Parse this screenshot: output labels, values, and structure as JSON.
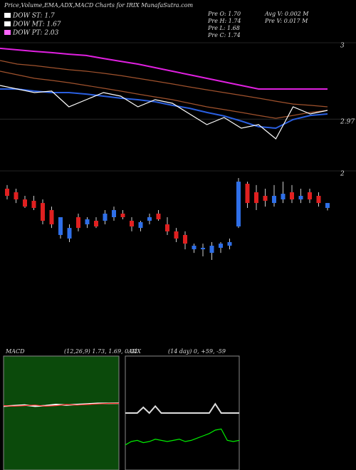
{
  "header": {
    "title": "Price,Volume,EMA,ADX,MACD Charts for IRIX MunafaSutra.com",
    "legend": [
      {
        "label": "DOW ST: 1.7",
        "color": "#ffffff"
      },
      {
        "label": "DOW MT: 1.67",
        "color": "#ffffff"
      },
      {
        "label": "DOW PT: 2.03",
        "color": "#ff66ff"
      }
    ],
    "info": [
      "Pre O: 1.70",
      "Pre H: 1.74",
      "Pre L: 1.68",
      "Pre C: 1.74",
      "Avg V: 0.002 M",
      "Pre V: 0.017 M"
    ]
  },
  "chart_data": [
    {
      "type": "line",
      "categories": [
        null,
        null,
        null,
        null,
        null,
        null,
        null,
        null,
        null,
        null,
        null,
        null,
        null,
        null,
        null,
        null,
        null,
        null,
        null,
        null
      ],
      "ylim": [
        2.951,
        3.0
      ],
      "yticks": [
        3,
        2.97
      ],
      "series": [
        {
          "color": "#e020e0",
          "values": [
            2.9978,
            2.9972,
            2.9966,
            2.9961,
            2.9955,
            2.995,
            2.9938,
            2.9927,
            2.9916,
            2.9902,
            2.9888,
            2.9874,
            2.986,
            2.9846,
            2.9832,
            2.9818,
            2.9818,
            2.9818,
            2.9818,
            2.9818
          ]
        },
        {
          "color": "#a0522d",
          "values": [
            2.993,
            2.9916,
            2.991,
            2.9902,
            2.9894,
            2.9888,
            2.988,
            2.9871,
            2.986,
            2.9849,
            2.9838,
            2.9826,
            2.9815,
            2.9804,
            2.9793,
            2.9782,
            2.977,
            2.9759,
            2.9754,
            2.9748
          ]
        },
        {
          "color": "#a0522d",
          "values": [
            2.9888,
            2.9874,
            2.986,
            2.9852,
            2.9843,
            2.9832,
            2.9821,
            2.981,
            2.9798,
            2.9787,
            2.9776,
            2.9762,
            2.9748,
            2.9737,
            2.9726,
            2.9714,
            2.9703,
            2.9714,
            2.9726,
            2.9734
          ]
        },
        {
          "color": "#2a5fe0",
          "values": [
            2.9818,
            2.9818,
            2.981,
            2.9804,
            2.9804,
            2.9798,
            2.979,
            2.9782,
            2.9776,
            2.9768,
            2.9754,
            2.9742,
            2.9726,
            2.9712,
            2.9692,
            2.967,
            2.9664,
            2.9698,
            2.9714,
            2.972
          ]
        },
        {
          "color": "#ffffff",
          "values": [
            2.9832,
            2.9818,
            2.9804,
            2.981,
            2.9748,
            2.9776,
            2.9804,
            2.979,
            2.9748,
            2.9776,
            2.9762,
            2.972,
            2.9678,
            2.9706,
            2.9664,
            2.9678,
            2.9622,
            2.9748,
            2.972,
            2.9734
          ]
        }
      ]
    },
    {
      "type": "candlestick",
      "ylim": [
        1.25,
        2.0
      ],
      "yticks": [
        2
      ],
      "up_color": "#2f6fe8",
      "down_color": "#e02020",
      "open": [
        1.856,
        1.827,
        1.769,
        1.758,
        1.74,
        1.683,
        1.481,
        1.452,
        1.625,
        1.567,
        1.596,
        1.596,
        1.625,
        1.654,
        1.596,
        1.538,
        1.596,
        1.654,
        1.567,
        1.51,
        1.481,
        1.365,
        1.365,
        1.336,
        1.377,
        1.394,
        1.55,
        1.896,
        1.827,
        1.798,
        1.74,
        1.769,
        1.827,
        1.769,
        1.827,
        1.798,
        1.7
      ],
      "high": [
        1.885,
        1.856,
        1.798,
        1.798,
        1.769,
        1.711,
        1.625,
        1.567,
        1.654,
        1.625,
        1.625,
        1.683,
        1.711,
        1.683,
        1.625,
        1.596,
        1.654,
        1.683,
        1.625,
        1.538,
        1.51,
        1.411,
        1.411,
        1.423,
        1.423,
        1.452,
        1.942,
        1.913,
        1.885,
        1.856,
        1.885,
        1.913,
        1.885,
        1.856,
        1.856,
        1.827,
        1.74
      ],
      "low": [
        1.769,
        1.74,
        1.7,
        1.683,
        1.567,
        1.538,
        1.452,
        1.423,
        1.51,
        1.538,
        1.538,
        1.567,
        1.596,
        1.608,
        1.51,
        1.51,
        1.567,
        1.596,
        1.481,
        1.423,
        1.365,
        1.336,
        1.308,
        1.279,
        1.336,
        1.365,
        1.538,
        1.7,
        1.683,
        1.711,
        1.711,
        1.74,
        1.74,
        1.74,
        1.74,
        1.711,
        1.68
      ],
      "close": [
        1.798,
        1.769,
        1.711,
        1.7,
        1.596,
        1.567,
        1.625,
        1.538,
        1.538,
        1.608,
        1.55,
        1.654,
        1.683,
        1.625,
        1.55,
        1.585,
        1.625,
        1.608,
        1.51,
        1.452,
        1.411,
        1.394,
        1.377,
        1.394,
        1.411,
        1.423,
        1.913,
        1.74,
        1.74,
        1.758,
        1.798,
        1.815,
        1.769,
        1.798,
        1.769,
        1.74,
        1.74
      ]
    },
    {
      "type": "line",
      "title": "MACD",
      "subtitle": "(12,26,9) 1.73, 1.69, 0.04",
      "background": "#0b4a0b",
      "categories": [
        null,
        null,
        null,
        null,
        null,
        null,
        null,
        null,
        null,
        null,
        null,
        null
      ],
      "ylim": [
        -10,
        10
      ],
      "series": [
        {
          "color": "#ffffff",
          "values": [
            1.2,
            1.3,
            1.4,
            1.2,
            1.3,
            1.5,
            1.4,
            1.5,
            1.6,
            1.7,
            1.7,
            1.73
          ]
        },
        {
          "color": "#ff3030",
          "values": [
            1.3,
            1.2,
            1.3,
            1.4,
            1.2,
            1.3,
            1.5,
            1.4,
            1.5,
            1.6,
            1.69,
            1.69
          ]
        }
      ]
    },
    {
      "type": "line",
      "title": "ADX",
      "subtitle": "(14 day) 0, +59, -59",
      "background": "#000000",
      "categories": [
        null,
        null,
        null,
        null,
        null,
        null,
        null,
        null,
        null,
        null,
        null,
        null,
        null,
        null,
        null,
        null,
        null,
        null,
        null,
        null
      ],
      "ylim": [
        0,
        100
      ],
      "series": [
        {
          "color": "#dddddd",
          "values": [
            50,
            50,
            50,
            55,
            50,
            56,
            50,
            50,
            50,
            50,
            50,
            50,
            50,
            50,
            50,
            58,
            50,
            50,
            50,
            50
          ]
        },
        {
          "color": "#00ee00",
          "values": [
            22,
            25,
            26,
            24,
            25,
            27,
            26,
            25,
            26,
            27,
            25,
            26,
            28,
            30,
            32,
            35,
            36,
            26,
            25,
            26
          ]
        }
      ]
    }
  ]
}
